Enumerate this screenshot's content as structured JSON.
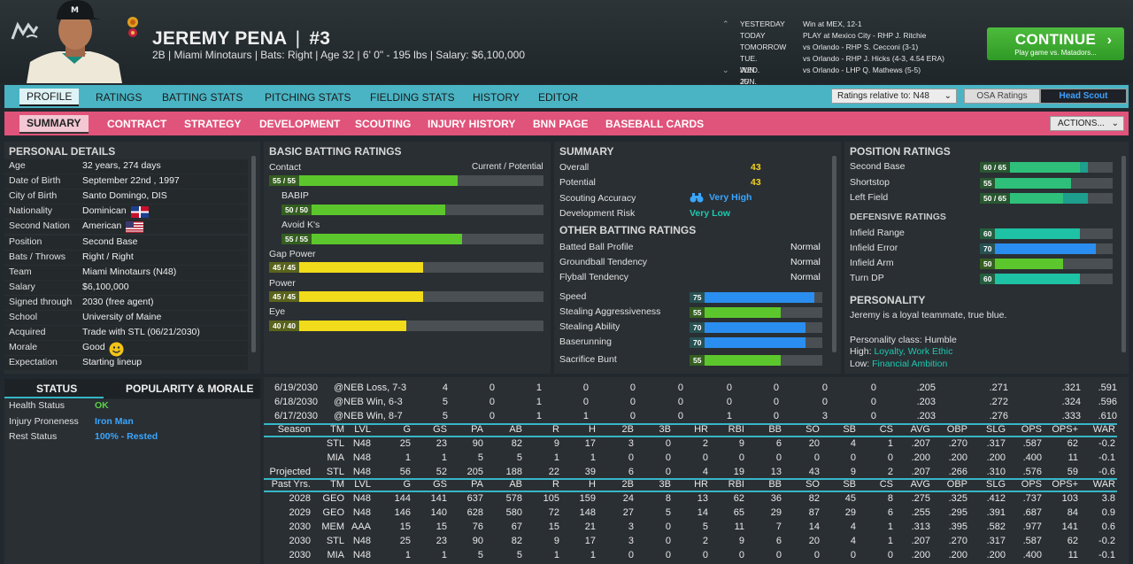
{
  "header": {
    "player_name": "JEREMY PENA",
    "divider": "|",
    "number": "#3",
    "info": "2B | Miami Minotaurs  |  Bats: Right  |  Age 32  |  6' 0\" - 195 lbs  |  Salary: $6,100,000"
  },
  "schedule": [
    {
      "day": "YESTERDAY",
      "event": "Win at MEX, 12-1"
    },
    {
      "day": "TODAY",
      "event": "PLAY at Mexico City - RHP J. Ritchie"
    },
    {
      "day": "TOMORROW",
      "event": "vs Orlando - RHP S. Cecconi (3-1)"
    },
    {
      "day": "TUE. JUN. 25",
      "event": "vs Orlando - RHP J. Hicks (4-3, 4.54 ERA)"
    },
    {
      "day": "WED. JUN. 26",
      "event": "vs Orlando - LHP Q. Mathews (5-5)"
    }
  ],
  "continue": {
    "label": "CONTINUE",
    "sub": "Play game vs. Matadors..."
  },
  "tabs_main": [
    "PROFILE",
    "RATINGS",
    "BATTING STATS",
    "PITCHING STATS",
    "FIELDING STATS",
    "HISTORY",
    "EDITOR"
  ],
  "ratings_relative": "Ratings relative to: N48",
  "osa_label": "OSA Ratings",
  "head_scout_label": "Head Scout",
  "tabs_sub": [
    "SUMMARY",
    "CONTRACT",
    "STRATEGY",
    "DEVELOPMENT",
    "SCOUTING",
    "INJURY HISTORY",
    "BNN PAGE",
    "BASEBALL CARDS"
  ],
  "actions_label": "ACTIONS...",
  "personal": {
    "title": "PERSONAL DETAILS",
    "rows": [
      [
        "Age",
        "32 years, 274 days"
      ],
      [
        "Date of Birth",
        "September 22nd , 1997"
      ],
      [
        "City of Birth",
        "Santo Domingo, DIS"
      ],
      [
        "Nationality",
        "Dominican"
      ],
      [
        "Second Nation",
        "American"
      ],
      [
        "Position",
        "Second Base"
      ],
      [
        "Bats / Throws",
        "Right / Right"
      ],
      [
        "Team",
        "Miami Minotaurs (N48)"
      ],
      [
        "Salary",
        "$6,100,000"
      ],
      [
        "Signed through",
        "2030 (free agent)"
      ],
      [
        "School",
        "University of Maine"
      ],
      [
        "Acquired",
        "Trade with STL (06/21/2030)"
      ],
      [
        "Morale",
        "Good"
      ],
      [
        "Expectation",
        "Starting lineup"
      ]
    ]
  },
  "status": {
    "tab1": "STATUS",
    "tab2": "POPULARITY & MORALE",
    "rows": [
      [
        "Health Status",
        "OK"
      ],
      [
        "Injury Proneness",
        "Iron Man"
      ],
      [
        "Rest Status",
        "100% - Rested"
      ]
    ]
  },
  "batting": {
    "title": "BASIC BATTING RATINGS",
    "cur_pot": "Current / Potential",
    "items": [
      {
        "label": "Contact",
        "text": "55 / 55",
        "value": 55,
        "color": "green"
      },
      {
        "label": "BABIP",
        "text": "50 / 50",
        "value": 50,
        "color": "green"
      },
      {
        "label": "Avoid K's",
        "text": "55 / 55",
        "value": 55,
        "color": "green"
      },
      {
        "label": "Gap Power",
        "text": "45 / 45",
        "value": 45,
        "color": "yellow"
      },
      {
        "label": "Power",
        "text": "45 / 45",
        "value": 45,
        "color": "yellow"
      },
      {
        "label": "Eye",
        "text": "40 / 40",
        "value": 40,
        "color": "yellow"
      }
    ]
  },
  "summary": {
    "title": "SUMMARY",
    "overall_l": "Overall",
    "overall": "43",
    "potential_l": "Potential",
    "potential": "43",
    "accuracy_l": "Scouting Accuracy",
    "accuracy": "Very High",
    "risk_l": "Development Risk",
    "risk": "Very Low",
    "other_title": "OTHER BATTING RATINGS",
    "other": [
      [
        "Batted Ball Profile",
        "Normal"
      ],
      [
        "Groundball Tendency",
        "Normal"
      ],
      [
        "Flyball Tendency",
        "Normal"
      ]
    ],
    "run": [
      {
        "label": "Speed",
        "value": 75,
        "color": "blue"
      },
      {
        "label": "Stealing Aggressiveness",
        "value": 55,
        "color": "green"
      },
      {
        "label": "Stealing Ability",
        "value": 70,
        "color": "blue"
      },
      {
        "label": "Baserunning",
        "value": 70,
        "color": "blue"
      },
      {
        "label": "Sacrifice Bunt",
        "value": 55,
        "color": "green"
      }
    ]
  },
  "position": {
    "title": "POSITION RATINGS",
    "items": [
      {
        "label": "Second Base",
        "text": "60 / 65",
        "value": 60,
        "pot": 65
      },
      {
        "label": "Shortstop",
        "text": "55",
        "value": 55,
        "pot": 55
      },
      {
        "label": "Left Field",
        "text": "50 / 65",
        "value": 50,
        "pot": 65
      }
    ],
    "def_title": "DEFENSIVE RATINGS",
    "def": [
      {
        "label": "Infield Range",
        "value": 60,
        "color": "teal"
      },
      {
        "label": "Infield Error",
        "value": 70,
        "color": "blue"
      },
      {
        "label": "Infield Arm",
        "value": 50,
        "color": "green"
      },
      {
        "label": "Turn DP",
        "value": 60,
        "color": "teal"
      }
    ],
    "personality_title": "PERSONALITY",
    "personality_text": "Jeremy is a loyal teammate, true blue.",
    "class": "Personality class: Humble",
    "high_l": "High:",
    "high": "Loyalty, Work Ethic",
    "low_l": "Low:",
    "low": "Financial Ambition"
  },
  "games": [
    [
      "6/19/2030",
      "@NEB Loss, 7-3",
      "4",
      "0",
      "1",
      "0",
      "0",
      "0",
      "0",
      "0",
      "0",
      "0",
      ".205",
      ".271",
      ".321",
      ".591"
    ],
    [
      "6/18/2030",
      "@NEB Win, 6-3",
      "5",
      "0",
      "1",
      "0",
      "0",
      "0",
      "0",
      "0",
      "0",
      "0",
      ".203",
      ".272",
      ".324",
      ".596"
    ],
    [
      "6/17/2030",
      "@NEB Win, 8-7",
      "5",
      "0",
      "1",
      "1",
      "0",
      "0",
      "1",
      "0",
      "3",
      "0",
      ".203",
      ".276",
      ".333",
      ".610"
    ]
  ],
  "season_header": [
    "Season",
    "TM",
    "LVL",
    "G",
    "GS",
    "PA",
    "AB",
    "R",
    "H",
    "2B",
    "3B",
    "HR",
    "RBI",
    "BB",
    "SO",
    "SB",
    "CS",
    "AVG",
    "OBP",
    "SLG",
    "OPS",
    "OPS+",
    "WAR"
  ],
  "season_rows": [
    [
      "",
      "STL",
      "N48",
      "25",
      "23",
      "90",
      "82",
      "9",
      "17",
      "3",
      "0",
      "2",
      "9",
      "6",
      "20",
      "4",
      "1",
      ".207",
      ".270",
      ".317",
      ".587",
      "62",
      "-0.2"
    ],
    [
      "",
      "MIA",
      "N48",
      "1",
      "1",
      "5",
      "5",
      "1",
      "1",
      "0",
      "0",
      "0",
      "0",
      "0",
      "0",
      "0",
      "0",
      ".200",
      ".200",
      ".200",
      ".400",
      "11",
      "-0.1"
    ],
    [
      "Projected",
      "STL",
      "N48",
      "56",
      "52",
      "205",
      "188",
      "22",
      "39",
      "6",
      "0",
      "4",
      "19",
      "13",
      "43",
      "9",
      "2",
      ".207",
      ".266",
      ".310",
      ".576",
      "59",
      "-0.6"
    ]
  ],
  "past_header": [
    "Past Yrs.",
    "TM",
    "LVL",
    "G",
    "GS",
    "PA",
    "AB",
    "R",
    "H",
    "2B",
    "3B",
    "HR",
    "RBI",
    "BB",
    "SO",
    "SB",
    "CS",
    "AVG",
    "OBP",
    "SLG",
    "OPS",
    "OPS+",
    "WAR"
  ],
  "past_rows": [
    [
      "2028",
      "GEO",
      "N48",
      "144",
      "141",
      "637",
      "578",
      "105",
      "159",
      "24",
      "8",
      "13",
      "62",
      "36",
      "82",
      "45",
      "8",
      ".275",
      ".325",
      ".412",
      ".737",
      "103",
      "3.8"
    ],
    [
      "2029",
      "GEO",
      "N48",
      "146",
      "140",
      "628",
      "580",
      "72",
      "148",
      "27",
      "5",
      "14",
      "65",
      "29",
      "87",
      "29",
      "6",
      ".255",
      ".295",
      ".391",
      ".687",
      "84",
      "0.9"
    ],
    [
      "2030",
      "MEM",
      "AAA",
      "15",
      "15",
      "76",
      "67",
      "15",
      "21",
      "3",
      "0",
      "5",
      "11",
      "7",
      "14",
      "4",
      "1",
      ".313",
      ".395",
      ".582",
      ".977",
      "141",
      "0.6"
    ],
    [
      "2030",
      "STL",
      "N48",
      "25",
      "23",
      "90",
      "82",
      "9",
      "17",
      "3",
      "0",
      "2",
      "9",
      "6",
      "20",
      "4",
      "1",
      ".207",
      ".270",
      ".317",
      ".587",
      "62",
      "-0.2"
    ],
    [
      "2030",
      "MIA",
      "N48",
      "1",
      "1",
      "5",
      "5",
      "1",
      "1",
      "0",
      "0",
      "0",
      "0",
      "0",
      "0",
      "0",
      "0",
      ".200",
      ".200",
      ".200",
      ".400",
      "11",
      "-0.1"
    ]
  ]
}
